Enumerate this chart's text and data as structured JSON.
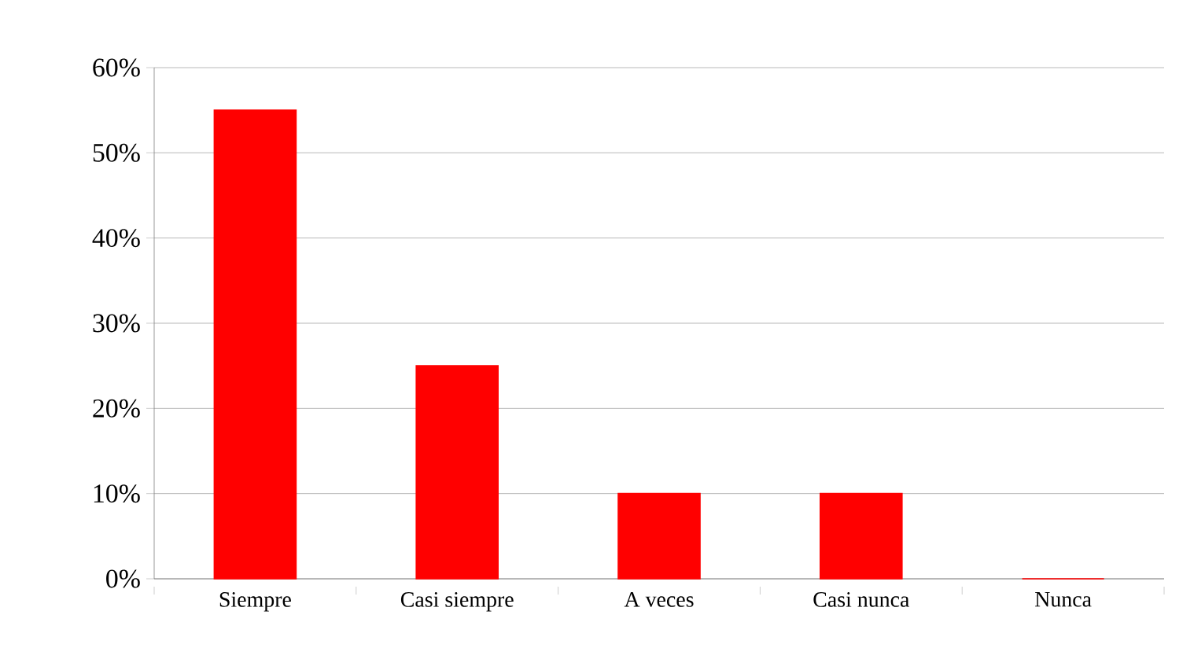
{
  "chart_data": {
    "type": "bar",
    "categories": [
      "Siempre",
      "Casi siempre",
      "A veces",
      "Casi nunca",
      "Nunca"
    ],
    "values": [
      55,
      25,
      10,
      10,
      0
    ],
    "color": "#ff0000",
    "ylim": [
      0,
      60
    ],
    "yticks": [
      {
        "value": 0,
        "label": "0%"
      },
      {
        "value": 10,
        "label": "10%"
      },
      {
        "value": 20,
        "label": "20%"
      },
      {
        "value": 30,
        "label": "30%"
      },
      {
        "value": 40,
        "label": "40%"
      },
      {
        "value": 50,
        "label": "50%"
      },
      {
        "value": 60,
        "label": "60%"
      }
    ],
    "grid": "y"
  }
}
